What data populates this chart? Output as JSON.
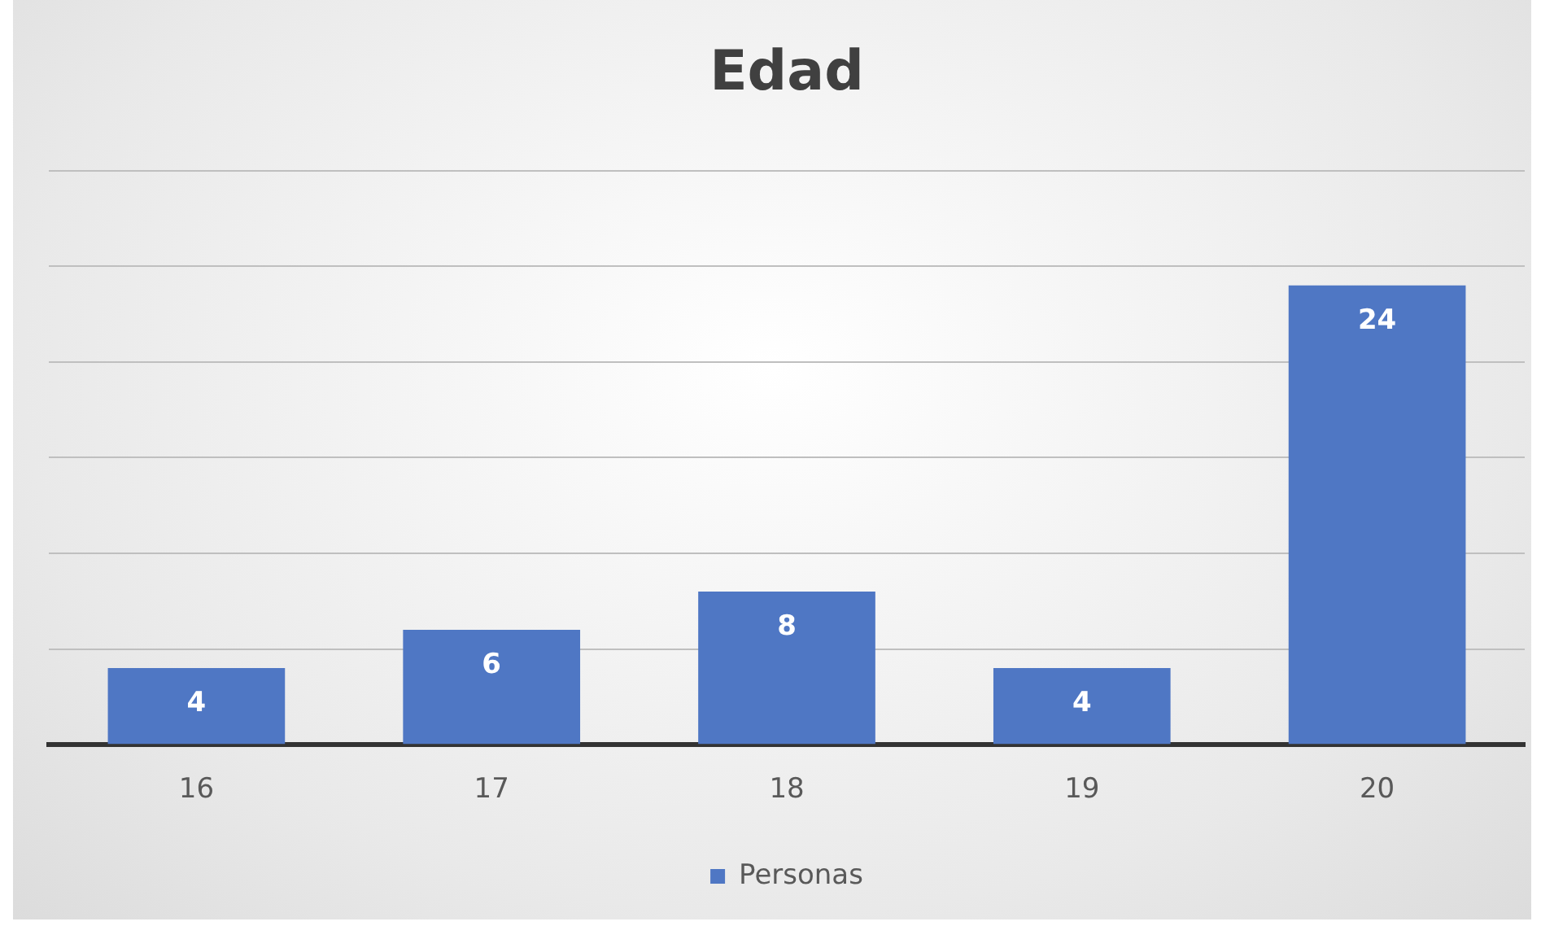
{
  "chart_data": {
    "type": "bar",
    "title": "Edad",
    "categories": [
      "16",
      "17",
      "18",
      "19",
      "20"
    ],
    "series": [
      {
        "name": "Personas",
        "color": "#4f77c4",
        "values": [
          4,
          6,
          8,
          4,
          24
        ]
      }
    ],
    "tick_labels": "x",
    "grid": "y",
    "legend": "bottom",
    "data_labels": true
  }
}
